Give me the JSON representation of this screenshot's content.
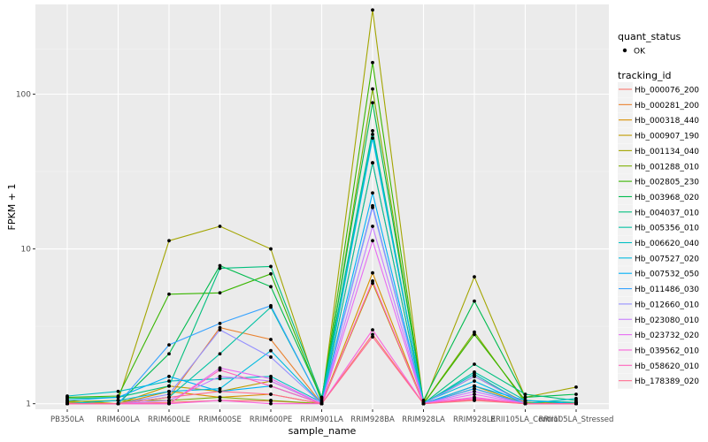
{
  "chart_data": {
    "type": "line",
    "title": "",
    "xlabel": "sample_name",
    "ylabel": "FPKM + 1",
    "y_scale": "log10",
    "ylim": [
      0.92,
      380
    ],
    "yticks": [
      1,
      10,
      100
    ],
    "ytick_labels": [
      "1",
      "10",
      "100"
    ],
    "grid": true,
    "legend_position": "right",
    "categories": [
      "PB350LA",
      "RRIM600LA",
      "RRIM600LE",
      "RRIM600SE",
      "RRIM600PE",
      "RRIM901LA",
      "RRIM928BA",
      "RRIM928LA",
      "RRIM928LE",
      "RRII105LA_Control",
      "RRII105LA_Stressed"
    ],
    "shape_legend": {
      "title": "quant_status",
      "items": [
        "OK"
      ]
    },
    "color_legend_title": "tracking_id",
    "series": [
      {
        "name": "Hb_000076_200",
        "color": "#F8766D",
        "values": [
          1.0,
          1.0,
          1.02,
          1.05,
          1.04,
          1.0,
          2.8,
          1.0,
          1.05,
          1.0,
          1.02
        ]
      },
      {
        "name": "Hb_000281_200",
        "color": "#EA8331",
        "values": [
          1.02,
          1.0,
          1.1,
          3.1,
          2.6,
          1.0,
          36,
          1.0,
          1.5,
          1.02,
          1.0
        ]
      },
      {
        "name": "Hb_000318_440",
        "color": "#D89000",
        "values": [
          1.0,
          1.0,
          1.2,
          1.1,
          1.15,
          1.0,
          7.0,
          1.0,
          1.25,
          1.0,
          1.0
        ]
      },
      {
        "name": "Hb_000907_190",
        "color": "#C09B00",
        "values": [
          1.05,
          1.0,
          1.3,
          1.2,
          1.4,
          1.0,
          6.0,
          1.0,
          1.3,
          1.0,
          1.02
        ]
      },
      {
        "name": "Hb_001134_040",
        "color": "#A3A500",
        "values": [
          1.0,
          1.05,
          11.3,
          14.0,
          10.0,
          1.02,
          350,
          1.0,
          6.6,
          1.1,
          1.28
        ]
      },
      {
        "name": "Hb_001288_010",
        "color": "#7CAE00",
        "values": [
          1.03,
          1.05,
          1.05,
          1.1,
          1.05,
          1.0,
          108,
          1.0,
          2.9,
          1.02,
          1.0
        ]
      },
      {
        "name": "Hb_002805_230",
        "color": "#39B600",
        "values": [
          1.1,
          1.12,
          5.1,
          5.2,
          6.9,
          1.05,
          160,
          1.0,
          2.8,
          1.05,
          1.0
        ]
      },
      {
        "name": "Hb_003968_020",
        "color": "#00BB4E",
        "values": [
          1.0,
          1.0,
          2.1,
          7.8,
          5.7,
          1.08,
          88,
          1.05,
          4.6,
          1.1,
          1.15
        ]
      },
      {
        "name": "Hb_004037_010",
        "color": "#00BF7D",
        "values": [
          1.08,
          1.1,
          1.3,
          7.5,
          7.7,
          1.1,
          58,
          1.0,
          1.8,
          1.15,
          1.05
        ]
      },
      {
        "name": "Hb_005356_010",
        "color": "#00C1A3",
        "values": [
          1.0,
          1.0,
          1.1,
          2.1,
          4.2,
          1.0,
          36,
          1.0,
          1.6,
          1.05,
          1.02
        ]
      },
      {
        "name": "Hb_006620_040",
        "color": "#00BFC4",
        "values": [
          1.12,
          1.2,
          1.4,
          1.45,
          1.5,
          1.02,
          55,
          1.0,
          1.55,
          1.0,
          1.08
        ]
      },
      {
        "name": "Hb_007527_020",
        "color": "#00BAE0",
        "values": [
          1.0,
          1.05,
          1.2,
          1.25,
          2.2,
          1.0,
          52,
          1.02,
          1.4,
          1.0,
          1.0
        ]
      },
      {
        "name": "Hb_007532_050",
        "color": "#00B0F6",
        "values": [
          1.05,
          1.1,
          1.5,
          1.2,
          1.3,
          1.0,
          23,
          1.0,
          1.3,
          1.05,
          1.0
        ]
      },
      {
        "name": "Hb_011486_030",
        "color": "#35A2FF",
        "values": [
          1.0,
          1.0,
          2.4,
          3.3,
          4.3,
          1.0,
          19,
          1.0,
          1.25,
          1.0,
          1.0
        ]
      },
      {
        "name": "Hb_012660_010",
        "color": "#9590FF",
        "values": [
          1.0,
          1.0,
          1.15,
          3.0,
          2.0,
          1.0,
          18.5,
          1.0,
          1.5,
          1.0,
          1.0
        ]
      },
      {
        "name": "Hb_023080_010",
        "color": "#C77CFF",
        "values": [
          1.0,
          1.0,
          1.05,
          1.5,
          1.4,
          1.0,
          14,
          1.0,
          1.2,
          1.0,
          1.0
        ]
      },
      {
        "name": "Hb_023732_020",
        "color": "#E76BF3",
        "values": [
          1.0,
          1.0,
          1.0,
          1.7,
          1.45,
          1.0,
          11.3,
          1.0,
          1.15,
          1.0,
          1.0
        ]
      },
      {
        "name": "Hb_039562_010",
        "color": "#FA62DB",
        "values": [
          1.0,
          1.0,
          1.0,
          1.05,
          1.0,
          1.0,
          3.0,
          1.0,
          1.1,
          1.0,
          1.0
        ]
      },
      {
        "name": "Hb_058620_010",
        "color": "#FF62BC",
        "values": [
          1.0,
          1.0,
          1.0,
          1.65,
          1.3,
          1.0,
          6.2,
          1.0,
          1.08,
          1.0,
          1.0
        ]
      },
      {
        "name": "Hb_178389_020",
        "color": "#FF6C91",
        "values": [
          1.0,
          1.0,
          1.1,
          1.2,
          1.15,
          1.0,
          2.7,
          1.0,
          1.06,
          1.0,
          1.0
        ]
      }
    ]
  }
}
